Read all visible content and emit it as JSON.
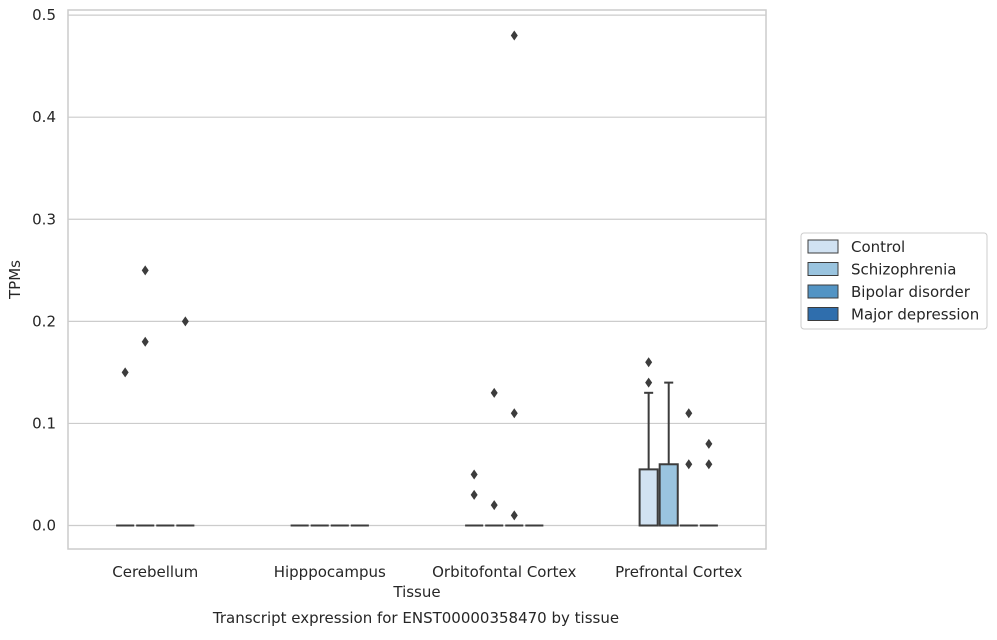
{
  "chart_data": {
    "type": "box",
    "title": "",
    "caption": "Transcript expression for ENST00000358470 by tissue",
    "xlabel": "Tissue",
    "ylabel": "TPMs",
    "ylim": [
      -0.023,
      0.505
    ],
    "yticks": [
      0.0,
      0.1,
      0.2,
      0.3,
      0.4,
      0.5
    ],
    "ytick_labels": [
      "0.0",
      "0.1",
      "0.2",
      "0.3",
      "0.4",
      "0.5"
    ],
    "grid": "horizontal",
    "legend_position": "right",
    "categories": [
      "Cerebellum",
      "Hipppocampus",
      "Orbitofontal Cortex",
      "Prefrontal Cortex"
    ],
    "series": [
      {
        "name": "Control",
        "color": "#d1e2f2",
        "boxes": [
          {
            "q1": 0,
            "median": 0,
            "q3": 0,
            "whislo": 0,
            "whishi": 0,
            "fliers": [
              0.15
            ]
          },
          {
            "q1": 0,
            "median": 0,
            "q3": 0,
            "whislo": 0,
            "whishi": 0,
            "fliers": []
          },
          {
            "q1": 0,
            "median": 0,
            "q3": 0,
            "whislo": 0,
            "whishi": 0,
            "fliers": [
              0.05,
              0.03
            ]
          },
          {
            "q1": 0,
            "median": 0,
            "q3": 0.055,
            "whislo": 0,
            "whishi": 0.13,
            "fliers": [
              0.16,
              0.14
            ]
          }
        ]
      },
      {
        "name": "Schizophrenia",
        "color": "#9ac4df",
        "boxes": [
          {
            "q1": 0,
            "median": 0,
            "q3": 0,
            "whislo": 0,
            "whishi": 0,
            "fliers": [
              0.25,
              0.18
            ]
          },
          {
            "q1": 0,
            "median": 0,
            "q3": 0,
            "whislo": 0,
            "whishi": 0,
            "fliers": []
          },
          {
            "q1": 0,
            "median": 0,
            "q3": 0,
            "whislo": 0,
            "whishi": 0,
            "fliers": [
              0.13,
              0.02
            ]
          },
          {
            "q1": 0,
            "median": 0,
            "q3": 0.06,
            "whislo": 0,
            "whishi": 0.14,
            "fliers": []
          }
        ]
      },
      {
        "name": "Bipolar disorder",
        "color": "#5394c4",
        "boxes": [
          {
            "q1": 0,
            "median": 0,
            "q3": 0,
            "whislo": 0,
            "whishi": 0,
            "fliers": []
          },
          {
            "q1": 0,
            "median": 0,
            "q3": 0,
            "whislo": 0,
            "whishi": 0,
            "fliers": []
          },
          {
            "q1": 0,
            "median": 0,
            "q3": 0,
            "whislo": 0,
            "whishi": 0,
            "fliers": [
              0.48,
              0.11,
              0.01
            ]
          },
          {
            "q1": 0,
            "median": 0,
            "q3": 0,
            "whislo": 0,
            "whishi": 0,
            "fliers": [
              0.11,
              0.06
            ]
          }
        ]
      },
      {
        "name": "Major depression",
        "color": "#2f6ead",
        "boxes": [
          {
            "q1": 0,
            "median": 0,
            "q3": 0,
            "whislo": 0,
            "whishi": 0,
            "fliers": [
              0.2
            ]
          },
          {
            "q1": 0,
            "median": 0,
            "q3": 0,
            "whislo": 0,
            "whishi": 0,
            "fliers": []
          },
          {
            "q1": 0,
            "median": 0,
            "q3": 0,
            "whislo": 0,
            "whishi": 0,
            "fliers": []
          },
          {
            "q1": 0,
            "median": 0,
            "q3": 0,
            "whislo": 0,
            "whishi": 0,
            "fliers": [
              0.08,
              0.06
            ]
          }
        ]
      }
    ]
  }
}
